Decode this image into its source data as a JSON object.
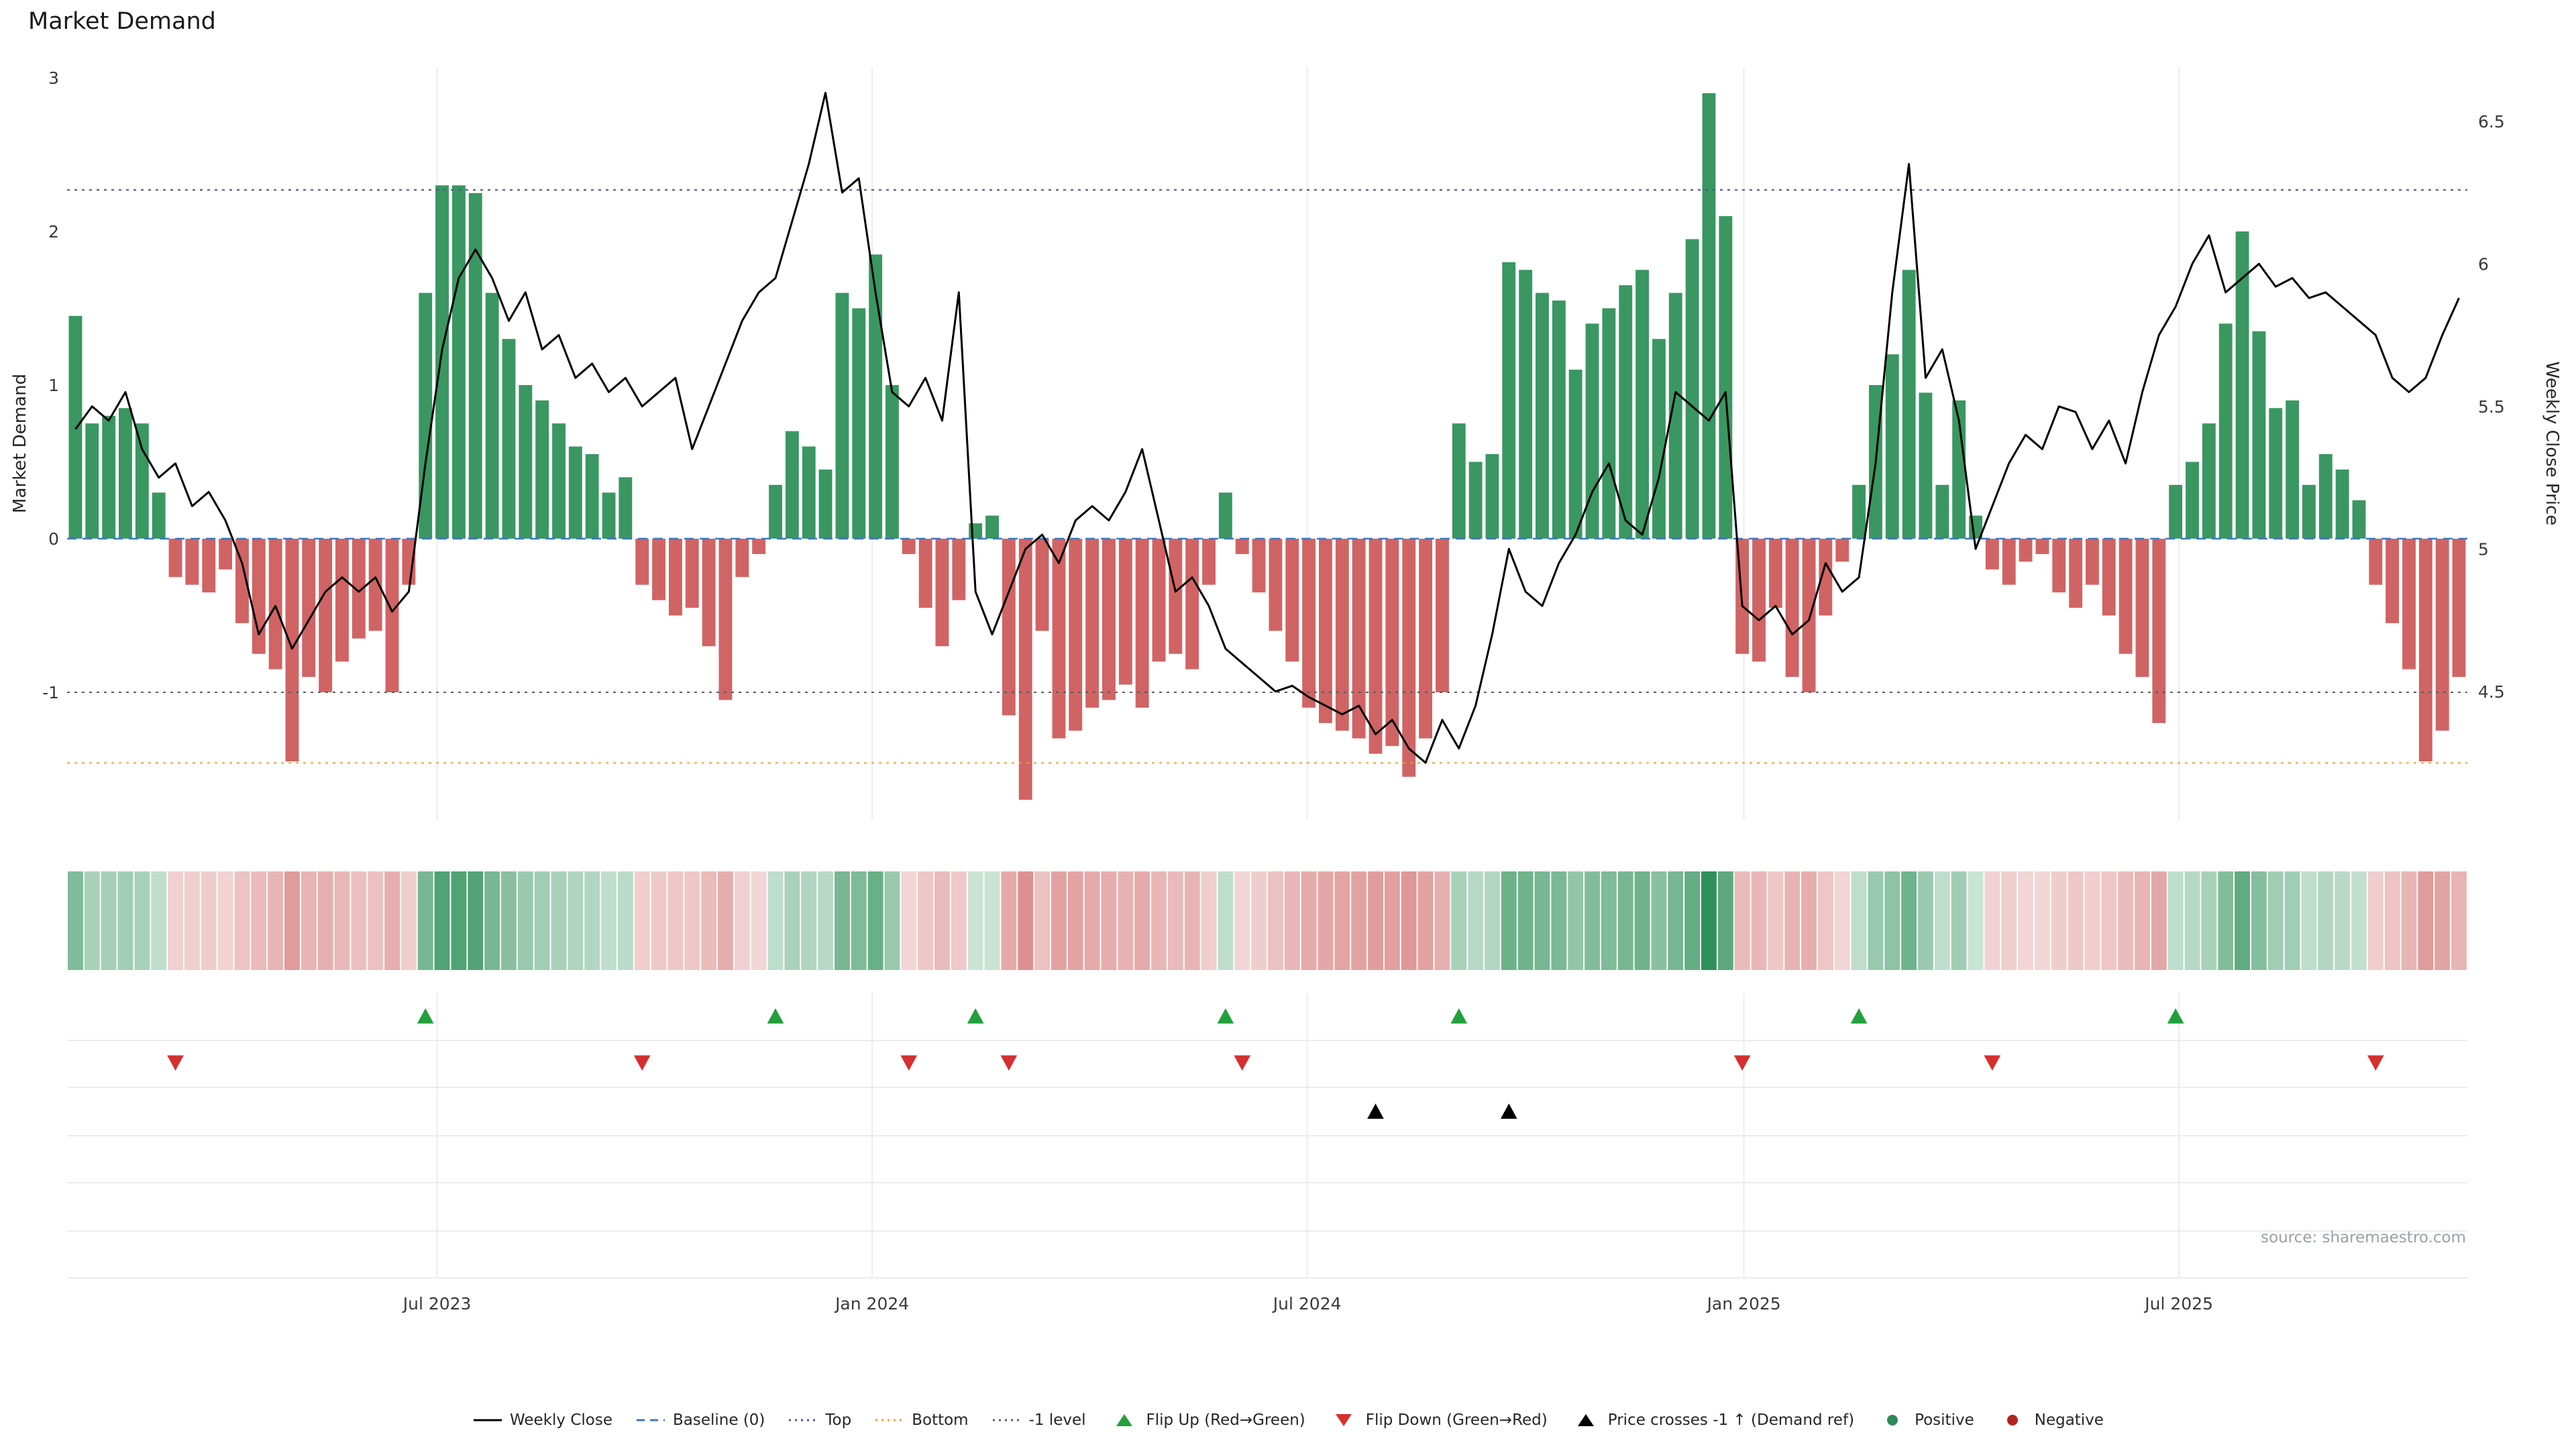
{
  "page": {
    "title": "Market Demand",
    "source": "source: sharemaestro.com"
  },
  "axes": {
    "left_label": "Market Demand",
    "right_label": "Weekly Close Price",
    "left_ticks": [
      3,
      2,
      1,
      0,
      -1
    ],
    "right_ticks": [
      6.5,
      6,
      5.5,
      5,
      4.5
    ],
    "x_ticks": [
      "Jul 2023",
      "Jan 2024",
      "Jul 2024",
      "Jan 2025",
      "Jul 2025"
    ]
  },
  "colors": {
    "positive": "#2f9159",
    "negative": "#cd5c5c",
    "line": "#000000",
    "baseline": "#3f76c0",
    "top": "#4d4d99",
    "bottom": "#e5a33c",
    "minus1": "#5a5a5a",
    "flip_up": "#22a03c",
    "flip_down": "#d62f2f",
    "price_cross": "#000000",
    "grid": "#ececec"
  },
  "chart_data": {
    "type": "bar+line",
    "title": "Market Demand",
    "xlabel": "",
    "ylabel_left": "Market Demand",
    "ylabel_right": "Weekly Close Price",
    "demand_ylim": [
      -1.83,
      3.07
    ],
    "price_ylim": [
      4.05,
      6.69
    ],
    "x_tick_labels": [
      "Jul 2023",
      "Jan 2024",
      "Jul 2024",
      "Jan 2025",
      "Jul 2025"
    ],
    "x_tick_index": [
      21.7,
      47.8,
      73.9,
      100.1,
      126.2
    ],
    "reference_lines": {
      "baseline": 0,
      "top": 2.27,
      "bottom": -1.46,
      "minus1": -1
    },
    "demand": [
      1.45,
      0.75,
      0.8,
      0.85,
      0.75,
      0.3,
      -0.25,
      -0.3,
      -0.35,
      -0.2,
      -0.55,
      -0.75,
      -0.85,
      -1.45,
      -0.9,
      -1.0,
      -0.8,
      -0.65,
      -0.6,
      -1.0,
      -0.3,
      1.6,
      2.3,
      2.3,
      2.25,
      1.6,
      1.3,
      1.0,
      0.9,
      0.75,
      0.6,
      0.55,
      0.3,
      0.4,
      -0.3,
      -0.4,
      -0.5,
      -0.45,
      -0.7,
      -1.05,
      -0.25,
      -0.1,
      0.35,
      0.7,
      0.6,
      0.45,
      1.6,
      1.5,
      1.85,
      1.0,
      -0.1,
      -0.45,
      -0.7,
      -0.4,
      0.1,
      0.15,
      -1.15,
      -1.7,
      -0.6,
      -1.3,
      -1.25,
      -1.1,
      -1.05,
      -0.95,
      -1.1,
      -0.8,
      -0.75,
      -0.85,
      -0.3,
      0.3,
      -0.1,
      -0.35,
      -0.6,
      -0.8,
      -1.1,
      -1.2,
      -1.25,
      -1.3,
      -1.4,
      -1.35,
      -1.55,
      -1.3,
      -1.0,
      0.75,
      0.5,
      0.55,
      1.8,
      1.75,
      1.6,
      1.55,
      1.1,
      1.4,
      1.5,
      1.65,
      1.75,
      1.3,
      1.6,
      1.95,
      2.9,
      2.1,
      -0.75,
      -0.8,
      -0.45,
      -0.9,
      -1.0,
      -0.5,
      -0.15,
      0.35,
      1.0,
      1.2,
      1.75,
      0.95,
      0.35,
      0.9,
      0.15,
      -0.2,
      -0.3,
      -0.15,
      -0.1,
      -0.35,
      -0.45,
      -0.3,
      -0.5,
      -0.75,
      -0.9,
      -1.2,
      0.35,
      0.5,
      0.75,
      1.4,
      2.0,
      1.35,
      0.85,
      0.9,
      0.35,
      0.55,
      0.45,
      0.25,
      -0.3,
      -0.55,
      -0.85,
      -1.45,
      -1.25,
      -0.9
    ],
    "price": [
      5.42,
      5.5,
      5.45,
      5.55,
      5.35,
      5.25,
      5.3,
      5.15,
      5.2,
      5.1,
      4.95,
      4.7,
      4.8,
      4.65,
      4.75,
      4.85,
      4.9,
      4.85,
      4.9,
      4.78,
      4.85,
      5.3,
      5.7,
      5.95,
      6.05,
      5.95,
      5.8,
      5.9,
      5.7,
      5.75,
      5.6,
      5.65,
      5.55,
      5.6,
      5.5,
      5.55,
      5.6,
      5.35,
      5.5,
      5.65,
      5.8,
      5.9,
      5.95,
      6.15,
      6.35,
      6.6,
      6.25,
      6.3,
      5.9,
      5.55,
      5.5,
      5.6,
      5.45,
      5.9,
      4.85,
      4.7,
      4.85,
      5.0,
      5.05,
      4.95,
      5.1,
      5.15,
      5.1,
      5.2,
      5.35,
      5.1,
      4.85,
      4.9,
      4.8,
      4.65,
      4.6,
      4.55,
      4.5,
      4.52,
      4.48,
      4.45,
      4.42,
      4.45,
      4.35,
      4.4,
      4.3,
      4.25,
      4.4,
      4.3,
      4.45,
      4.7,
      5.0,
      4.85,
      4.8,
      4.95,
      5.05,
      5.2,
      5.3,
      5.1,
      5.05,
      5.25,
      5.55,
      5.5,
      5.45,
      5.55,
      4.8,
      4.75,
      4.8,
      4.7,
      4.75,
      4.95,
      4.85,
      4.9,
      5.3,
      5.9,
      6.35,
      5.6,
      5.7,
      5.45,
      5.0,
      5.15,
      5.3,
      5.4,
      5.35,
      5.5,
      5.48,
      5.35,
      5.45,
      5.3,
      5.55,
      5.75,
      5.85,
      6.0,
      6.1,
      5.9,
      5.95,
      6.0,
      5.92,
      5.95,
      5.88,
      5.9,
      5.85,
      5.8,
      5.75,
      5.6,
      5.55,
      5.6,
      5.75,
      5.88
    ],
    "markers": {
      "flip_up": [
        21,
        42,
        54,
        69,
        83,
        107,
        126
      ],
      "flip_down": [
        6,
        34,
        50,
        56,
        70,
        100,
        115,
        138
      ],
      "price_cross": [
        78,
        86
      ]
    }
  },
  "legend": {
    "items": [
      {
        "name": "weekly-close",
        "label": "Weekly Close",
        "sample": "line",
        "color": "#000000",
        "dash": ""
      },
      {
        "name": "baseline",
        "label": "Baseline (0)",
        "sample": "line",
        "color": "#3f76c0",
        "dash": "12 8"
      },
      {
        "name": "top",
        "label": "Top",
        "sample": "line",
        "color": "#4d4d99",
        "dash": "3 6"
      },
      {
        "name": "bottom",
        "label": "Bottom",
        "sample": "line",
        "color": "#e5a33c",
        "dash": "3 6"
      },
      {
        "name": "minus1-level",
        "label": "-1 level",
        "sample": "line",
        "color": "#5a5a5a",
        "dash": "3 6"
      },
      {
        "name": "flip-up",
        "label": "Flip Up (Red→Green)",
        "sample": "triangle-up",
        "color": "#22a03c",
        "dash": ""
      },
      {
        "name": "flip-down",
        "label": "Flip Down (Green→Red)",
        "sample": "triangle-down",
        "color": "#d62f2f",
        "dash": ""
      },
      {
        "name": "price-cross",
        "label": "Price crosses -1 ↑ (Demand ref)",
        "sample": "triangle-up",
        "color": "#000000",
        "dash": ""
      },
      {
        "name": "positive",
        "label": "Positive",
        "sample": "dot",
        "color": "#2e8b57",
        "dash": ""
      },
      {
        "name": "negative",
        "label": "Negative",
        "sample": "dot",
        "color": "#b22222",
        "dash": ""
      }
    ]
  }
}
